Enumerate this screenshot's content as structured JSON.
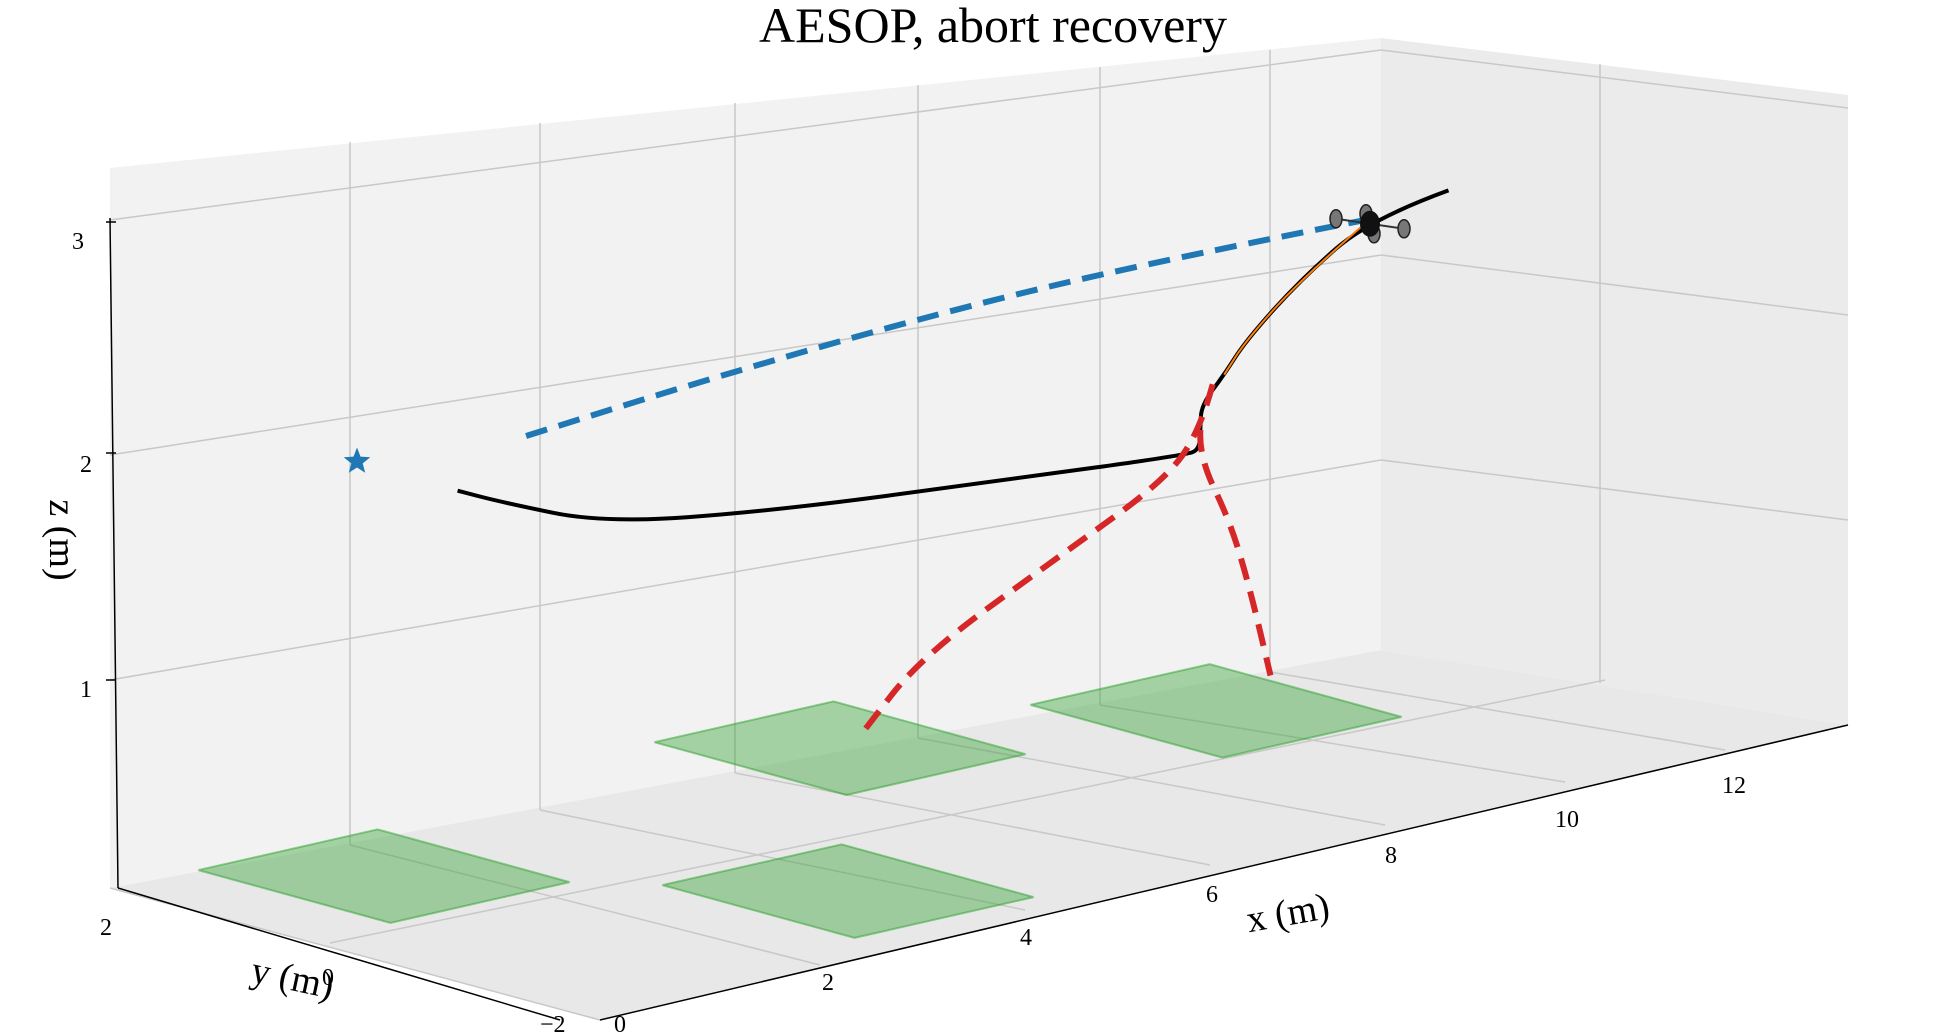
{
  "chart_data": {
    "type": "line3d",
    "title": "AESOP, abort recovery",
    "xlabel": "x (m)",
    "ylabel": "y (m)",
    "zlabel": "z (m)",
    "xlim": [
      0,
      13
    ],
    "ylim": [
      -2,
      2
    ],
    "zlim": [
      0,
      3
    ],
    "x_ticks": [
      "0",
      "2",
      "4",
      "6",
      "8",
      "10",
      "12"
    ],
    "y_ticks": [
      "−2",
      "0",
      "2"
    ],
    "z_ticks": [
      "1",
      "2",
      "3"
    ],
    "grid": true,
    "colors": {
      "trajectory": "#000000",
      "planned": "#1f77b4",
      "abort": "#d62728",
      "branch": "#ff7f0e",
      "landing": "#2ca02c",
      "pane": "#f2f2f2",
      "grid": "#cccccc"
    },
    "landing_zones": [
      {
        "x": 1.5,
        "y": 1.2
      },
      {
        "x": 3.5,
        "y": -0.8
      },
      {
        "x": 6.0,
        "y": 1.6
      },
      {
        "x": 8.5,
        "y": 0.8
      }
    ],
    "goal_marker": {
      "x": 1.0,
      "y": 1.0,
      "z": 2.0
    },
    "vehicle": {
      "x": 8.0,
      "y": -1.0,
      "z": 2.4
    },
    "series": [
      {
        "role": "trajectory",
        "style": "solid",
        "points": [
          [
            8.5,
            -1.2,
            2.5
          ],
          [
            8.0,
            -1.0,
            2.42
          ],
          [
            7.6,
            -0.8,
            2.2
          ],
          [
            7.3,
            -0.6,
            1.95
          ],
          [
            7.2,
            -0.5,
            1.8
          ],
          [
            7.2,
            -0.3,
            1.65
          ],
          [
            7.4,
            -0.1,
            1.5
          ],
          [
            7.7,
            0.2,
            1.35
          ],
          [
            8.0,
            0.6,
            1.25
          ],
          [
            6.5,
            0.7,
            1.3
          ],
          [
            4.5,
            0.8,
            1.38
          ],
          [
            3.0,
            0.8,
            1.5
          ],
          [
            2.2,
            0.9,
            1.68
          ],
          [
            1.8,
            0.9,
            1.78
          ]
        ]
      },
      {
        "role": "planned",
        "style": "dashed",
        "points": [
          [
            8.0,
            -1.0,
            2.42
          ],
          [
            6.5,
            -0.6,
            2.38
          ],
          [
            5.0,
            -0.2,
            2.3
          ],
          [
            3.5,
            0.3,
            2.15
          ],
          [
            2.2,
            0.7,
            2.0
          ]
        ]
      },
      {
        "role": "abort",
        "style": "dashed",
        "points": [
          [
            7.2,
            -0.4,
            1.75
          ],
          [
            7.4,
            -0.1,
            1.5
          ],
          [
            7.6,
            0.4,
            1.2
          ],
          [
            7.2,
            0.9,
            0.85
          ],
          [
            6.5,
            1.4,
            0.4
          ],
          [
            6.2,
            1.6,
            0.05
          ]
        ]
      },
      {
        "role": "abort",
        "style": "dashed",
        "points": [
          [
            7.4,
            -0.1,
            1.5
          ],
          [
            7.8,
            0.3,
            1.3
          ],
          [
            8.4,
            0.6,
            0.9
          ],
          [
            8.9,
            0.9,
            0.5
          ],
          [
            9.2,
            1.0,
            0.05
          ]
        ]
      },
      {
        "role": "branch",
        "style": "solid",
        "points": [
          [
            8.0,
            -1.0,
            2.42
          ],
          [
            7.6,
            -0.8,
            2.2
          ],
          [
            7.3,
            -0.6,
            1.95
          ],
          [
            7.2,
            -0.5,
            1.8
          ]
        ]
      }
    ]
  }
}
